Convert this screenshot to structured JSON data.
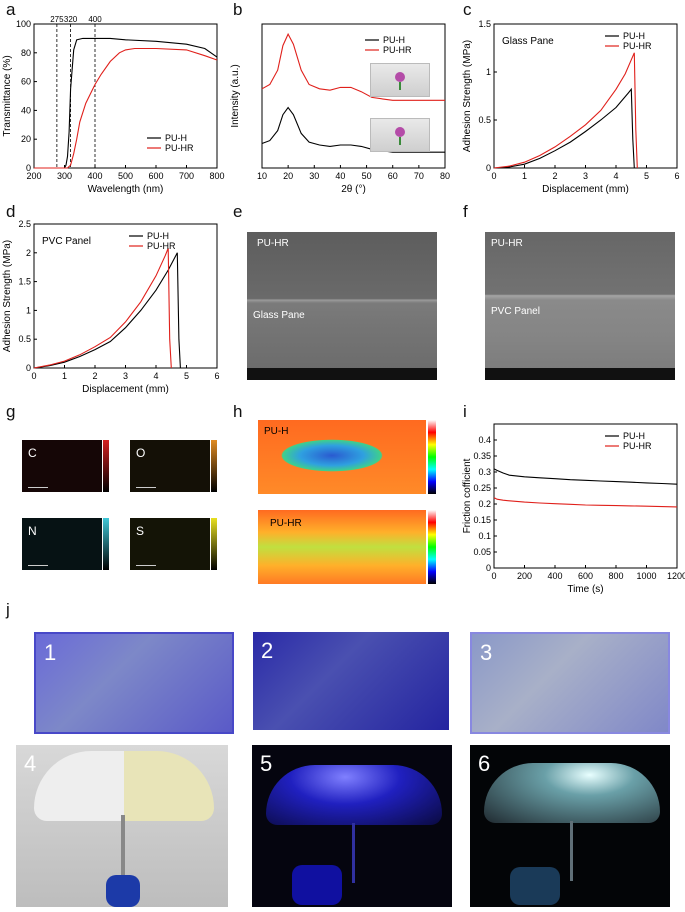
{
  "panel_labels": [
    "a",
    "b",
    "c",
    "d",
    "e",
    "f",
    "g",
    "h",
    "i",
    "j"
  ],
  "chart_data": [
    {
      "id": "a",
      "type": "line",
      "xlabel": "Wavelength (nm)",
      "ylabel": "Transmittance (%)",
      "xlim": [
        200,
        800
      ],
      "ylim": [
        0,
        100
      ],
      "xticks": [
        200,
        300,
        400,
        500,
        600,
        700,
        800
      ],
      "yticks": [
        0,
        20,
        40,
        60,
        80,
        100
      ],
      "vlines": [
        275,
        320,
        400
      ],
      "vline_labels": [
        "275",
        "320",
        "400"
      ],
      "legend": "bottom-right",
      "series": [
        {
          "name": "PU-H",
          "color": "#000000",
          "x": [
            200,
            290,
            300,
            305,
            310,
            315,
            320,
            330,
            340,
            360,
            400,
            450,
            500,
            600,
            700,
            760,
            800
          ],
          "y": [
            0,
            0,
            0,
            2,
            8,
            25,
            55,
            82,
            89,
            90,
            90,
            90,
            89,
            88,
            86,
            83,
            77
          ]
        },
        {
          "name": "PU-HR",
          "color": "#e0201b",
          "x": [
            200,
            310,
            320,
            330,
            340,
            350,
            370,
            400,
            420,
            450,
            480,
            500,
            530,
            600,
            700,
            760,
            800
          ],
          "y": [
            0,
            0,
            2,
            10,
            20,
            32,
            45,
            58,
            65,
            74,
            80,
            82,
            83,
            83,
            82,
            78,
            75
          ]
        }
      ]
    },
    {
      "id": "b",
      "type": "line",
      "xlabel": "2θ (°)",
      "ylabel": "Intensity (a.u.)",
      "xlim": [
        10,
        80
      ],
      "ylim": [
        0,
        1
      ],
      "xticks": [
        10,
        20,
        30,
        40,
        50,
        60,
        70,
        80
      ],
      "legend": "top-right",
      "series": [
        {
          "name": "PU-H",
          "color": "#000000",
          "x": [
            10,
            13,
            16,
            18,
            20,
            22,
            25,
            28,
            32,
            36,
            40,
            44,
            48,
            52,
            56,
            60,
            65,
            70,
            75,
            80
          ],
          "y": [
            0.17,
            0.19,
            0.26,
            0.37,
            0.42,
            0.37,
            0.24,
            0.18,
            0.16,
            0.15,
            0.16,
            0.16,
            0.15,
            0.13,
            0.12,
            0.11,
            0.11,
            0.11,
            0.11,
            0.11
          ]
        },
        {
          "name": "PU-HR",
          "color": "#e0201b",
          "x": [
            10,
            13,
            16,
            18,
            20,
            22,
            25,
            28,
            32,
            36,
            40,
            44,
            48,
            52,
            56,
            60,
            65,
            70,
            75,
            80
          ],
          "y": [
            0.55,
            0.58,
            0.68,
            0.85,
            0.93,
            0.86,
            0.68,
            0.58,
            0.55,
            0.54,
            0.56,
            0.56,
            0.53,
            0.49,
            0.48,
            0.47,
            0.47,
            0.47,
            0.47,
            0.47
          ]
        }
      ]
    },
    {
      "id": "c",
      "type": "line",
      "xlabel": "Displacement (mm)",
      "ylabel": "Adhesion Strength (MPa)",
      "xlim": [
        0,
        6
      ],
      "ylim": [
        0,
        1.5
      ],
      "xticks": [
        0,
        1,
        2,
        3,
        4,
        5,
        6
      ],
      "yticks": [
        0.0,
        0.5,
        1.0,
        1.5
      ],
      "annotation": "Glass Pane",
      "legend": "top-right",
      "series": [
        {
          "name": "PU-H",
          "color": "#000000",
          "x": [
            0,
            0.5,
            1,
            1.5,
            2,
            2.5,
            3,
            3.5,
            4,
            4.4,
            4.5,
            4.55,
            4.6
          ],
          "y": [
            0,
            0.01,
            0.04,
            0.1,
            0.18,
            0.27,
            0.38,
            0.5,
            0.63,
            0.78,
            0.82,
            0.3,
            0
          ]
        },
        {
          "name": "PU-HR",
          "color": "#e0201b",
          "x": [
            0,
            0.5,
            1,
            1.5,
            2,
            2.5,
            3,
            3.5,
            4,
            4.3,
            4.6,
            4.65,
            4.7
          ],
          "y": [
            0,
            0.02,
            0.06,
            0.13,
            0.22,
            0.33,
            0.45,
            0.6,
            0.82,
            0.98,
            1.2,
            0.4,
            0
          ]
        }
      ]
    },
    {
      "id": "d",
      "type": "line",
      "xlabel": "Displacement (mm)",
      "ylabel": "Adhesion Strength (MPa)",
      "xlim": [
        0,
        6
      ],
      "ylim": [
        0,
        2.5
      ],
      "xticks": [
        0,
        1,
        2,
        3,
        4,
        5,
        6
      ],
      "yticks": [
        0.0,
        0.5,
        1.0,
        1.5,
        2.0,
        2.5
      ],
      "annotation": "PVC Panel",
      "legend": "top-right",
      "series": [
        {
          "name": "PU-H",
          "color": "#000000",
          "x": [
            0,
            0.5,
            1,
            1.5,
            2,
            2.5,
            3,
            3.5,
            4,
            4.4,
            4.7,
            4.75,
            4.8
          ],
          "y": [
            0,
            0.04,
            0.1,
            0.2,
            0.32,
            0.46,
            0.7,
            1.0,
            1.35,
            1.7,
            2.0,
            0.5,
            0
          ]
        },
        {
          "name": "PU-HR",
          "color": "#e0201b",
          "x": [
            0,
            0.5,
            1,
            1.5,
            2,
            2.5,
            3,
            3.5,
            4,
            4.3,
            4.4,
            4.45,
            4.5
          ],
          "y": [
            0,
            0.05,
            0.12,
            0.23,
            0.37,
            0.53,
            0.8,
            1.15,
            1.6,
            1.95,
            2.08,
            0.5,
            0
          ]
        }
      ]
    },
    {
      "id": "i",
      "type": "line",
      "xlabel": "Time (s)",
      "ylabel": "Friction cofficient",
      "xlim": [
        0,
        1200
      ],
      "ylim": [
        0,
        0.45
      ],
      "xticks": [
        0,
        200,
        400,
        600,
        800,
        1000,
        1200
      ],
      "yticks": [
        0.0,
        0.05,
        0.1,
        0.15,
        0.2,
        0.25,
        0.3,
        0.35,
        0.4
      ],
      "legend": "top-right",
      "series": [
        {
          "name": "PU-H",
          "color": "#000000",
          "x": [
            0,
            20,
            60,
            100,
            200,
            300,
            400,
            500,
            600,
            700,
            800,
            900,
            1000,
            1100,
            1200
          ],
          "y": [
            0.31,
            0.305,
            0.297,
            0.29,
            0.285,
            0.282,
            0.279,
            0.276,
            0.274,
            0.272,
            0.27,
            0.268,
            0.266,
            0.264,
            0.262
          ]
        },
        {
          "name": "PU-HR",
          "color": "#e0201b",
          "x": [
            0,
            20,
            60,
            100,
            200,
            300,
            400,
            500,
            600,
            700,
            800,
            900,
            1000,
            1100,
            1200
          ],
          "y": [
            0.22,
            0.215,
            0.212,
            0.21,
            0.206,
            0.203,
            0.201,
            0.199,
            0.197,
            0.196,
            0.195,
            0.194,
            0.193,
            0.192,
            0.191
          ]
        }
      ]
    }
  ],
  "sem": {
    "e": {
      "top": "PU-HR",
      "bottom": "Glass Pane"
    },
    "f": {
      "top": "PU-HR",
      "bottom": "PVC Panel"
    }
  },
  "eds": {
    "labels": [
      "C",
      "O",
      "N",
      "S"
    ],
    "colors": [
      "#d42020",
      "#e08a20",
      "#40c8d8",
      "#e8e020"
    ]
  },
  "profiles": {
    "top": "PU-H",
    "bottom": "PU-HR"
  },
  "photos": {
    "numbers": [
      "1",
      "2",
      "3",
      "4",
      "5",
      "6"
    ]
  }
}
